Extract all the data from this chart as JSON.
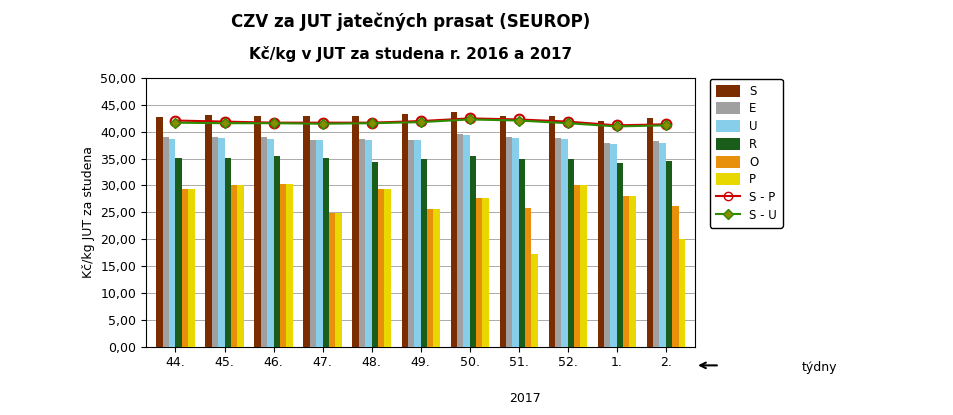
{
  "title_line1": "CZV za JUT jatečných prasat (SEUROP)",
  "title_line2": "Kč/kg v JUT za studena r. 2016 a 2017",
  "xlabel": "týdny",
  "ylabel": "Kč/kg JUT za studena",
  "weeks": [
    "44.",
    "45.",
    "46.",
    "47.",
    "48.",
    "49.",
    "50.",
    "51.",
    "52.",
    "1.",
    "2."
  ],
  "year2017_label": "2017",
  "ylim": [
    0,
    50
  ],
  "yticks": [
    0,
    5,
    10,
    15,
    20,
    25,
    30,
    35,
    40,
    45,
    50
  ],
  "ytick_labels": [
    "0,00",
    "5,00",
    "10,00",
    "15,00",
    "20,00",
    "25,00",
    "30,00",
    "35,00",
    "40,00",
    "45,00",
    "50,00"
  ],
  "S": [
    42.8,
    43.1,
    43.0,
    43.0,
    43.0,
    43.3,
    43.6,
    43.0,
    43.0,
    42.0,
    42.5
  ],
  "E": [
    39.0,
    39.0,
    39.0,
    38.5,
    38.6,
    38.5,
    39.5,
    39.0,
    38.8,
    38.0,
    38.2
  ],
  "U": [
    38.7,
    38.8,
    38.7,
    38.5,
    38.5,
    38.5,
    39.4,
    38.8,
    38.6,
    37.8,
    38.0
  ],
  "R": [
    35.2,
    35.1,
    35.4,
    35.1,
    34.4,
    34.9,
    35.4,
    35.0,
    35.0,
    34.1,
    34.5
  ],
  "O": [
    29.4,
    30.0,
    30.3,
    24.8,
    29.4,
    25.6,
    27.6,
    25.8,
    30.0,
    28.1,
    26.2
  ],
  "P": [
    29.4,
    30.0,
    30.3,
    24.8,
    29.4,
    25.6,
    27.6,
    17.3,
    30.0,
    28.1,
    20.0
  ],
  "SP": [
    42.1,
    41.9,
    41.7,
    41.7,
    41.7,
    42.0,
    42.5,
    42.3,
    41.9,
    41.2,
    41.4
  ],
  "SU": [
    41.7,
    41.6,
    41.6,
    41.5,
    41.6,
    41.8,
    42.3,
    42.1,
    41.6,
    41.0,
    41.2
  ],
  "colors": {
    "S": "#7B2D00",
    "E": "#A0A0A0",
    "U": "#87CEEB",
    "R": "#1A5C1A",
    "O": "#E8900A",
    "P": "#E8D800",
    "SP_line": "#CC0000",
    "SP_marker": "#CC0000",
    "SU_line": "#2E8B00",
    "SU_marker": "#8B8B00"
  },
  "bar_width": 0.13,
  "background_color": "#FFFFFF",
  "plot_bg_color": "#FFFFFF",
  "grid_color": "#000000"
}
